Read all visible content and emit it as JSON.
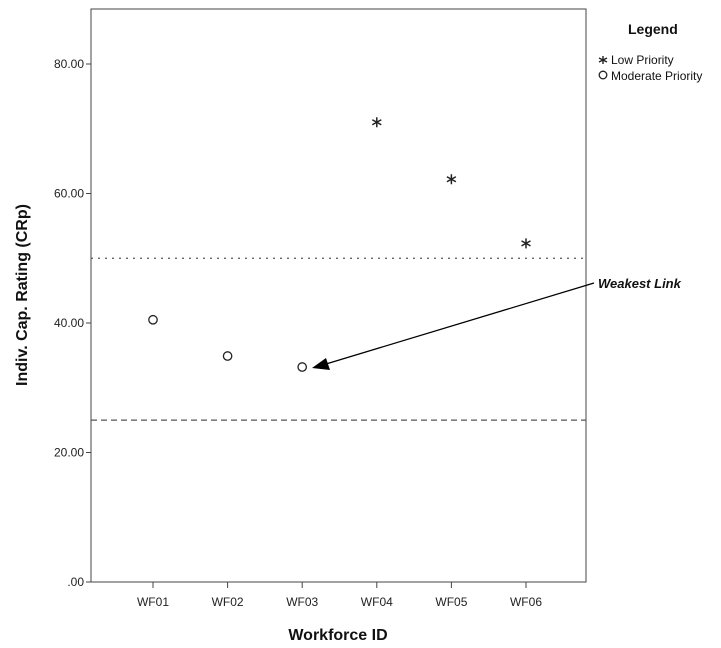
{
  "chart_data": {
    "type": "scatter",
    "xlabel": "Workforce ID",
    "ylabel": "Indiv. Cap. Rating (CRp)",
    "categories": [
      "WF01",
      "WF02",
      "WF03",
      "WF04",
      "WF05",
      "WF06"
    ],
    "ylim": [
      0,
      88
    ],
    "yticks": [
      0,
      20,
      40,
      60,
      80
    ],
    "ytick_labels": [
      ".00",
      "20.00",
      "40.00",
      "60.00",
      "80.00"
    ],
    "grid": false,
    "legend": {
      "title": "Legend",
      "placement": "outside-top-right",
      "items": [
        {
          "label": "Low Priority",
          "marker": "star"
        },
        {
          "label": "Moderate Priority",
          "marker": "circle"
        }
      ]
    },
    "series": [
      {
        "name": "Low Priority",
        "marker": "star",
        "points": [
          {
            "x": "WF04",
            "y": 71.0
          },
          {
            "x": "WF05",
            "y": 62.2
          },
          {
            "x": "WF06",
            "y": 52.3
          }
        ]
      },
      {
        "name": "Moderate Priority",
        "marker": "circle",
        "points": [
          {
            "x": "WF01",
            "y": 40.5
          },
          {
            "x": "WF02",
            "y": 34.9
          },
          {
            "x": "WF03",
            "y": 33.2
          }
        ]
      }
    ],
    "reference_lines": [
      {
        "y": 50,
        "style": "dotted"
      },
      {
        "y": 25,
        "style": "dashed"
      }
    ],
    "annotations": [
      {
        "text": "Weakest Link",
        "target": {
          "x": "WF03",
          "y": 33.2
        }
      }
    ]
  }
}
